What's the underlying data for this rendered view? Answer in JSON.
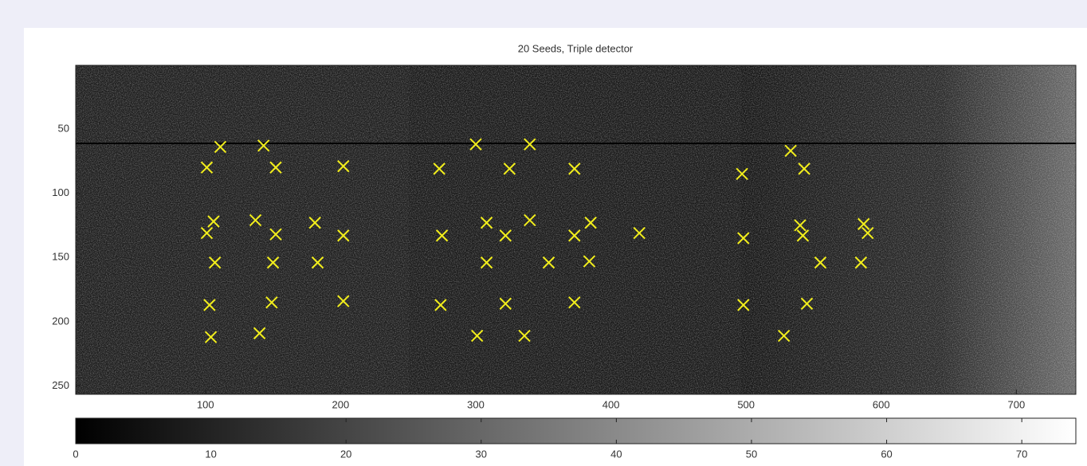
{
  "chart_data": {
    "type": "scatter",
    "title": "20 Seeds, Triple detector",
    "marker": "x",
    "color": "#f2ee1c",
    "x": [
      111,
      143,
      101,
      152,
      202,
      106,
      137,
      181,
      101,
      152,
      202,
      107,
      150,
      183,
      103,
      149,
      202,
      104,
      140,
      300,
      340,
      273,
      325,
      373,
      308,
      340,
      385,
      275,
      322,
      373,
      421,
      308,
      354,
      384,
      274,
      322,
      373,
      301,
      336,
      497,
      533,
      543,
      498,
      540,
      542,
      587,
      590,
      555,
      585,
      498,
      545,
      528
    ],
    "values": [
      64,
      63,
      80,
      80,
      79,
      122,
      121,
      123,
      131,
      132,
      133,
      154,
      154,
      154,
      187,
      185,
      184,
      212,
      209,
      62,
      62,
      81,
      81,
      81,
      123,
      121,
      123,
      133,
      133,
      133,
      131,
      154,
      154,
      153,
      187,
      186,
      185,
      211,
      211,
      85,
      67,
      81,
      135,
      125,
      133,
      124,
      131,
      154,
      154,
      187,
      186,
      211
    ],
    "xlim": [
      4,
      744
    ],
    "ylim": [
      0.5,
      256.5
    ],
    "y_reversed": true,
    "xticks": [
      100,
      200,
      300,
      400,
      500,
      600,
      700
    ],
    "yticks": [
      50,
      100,
      150,
      200,
      250
    ],
    "colorbar": {
      "lim": [
        0,
        74
      ],
      "ticks": [
        0,
        10,
        20,
        30,
        40,
        50,
        60,
        70
      ]
    }
  }
}
